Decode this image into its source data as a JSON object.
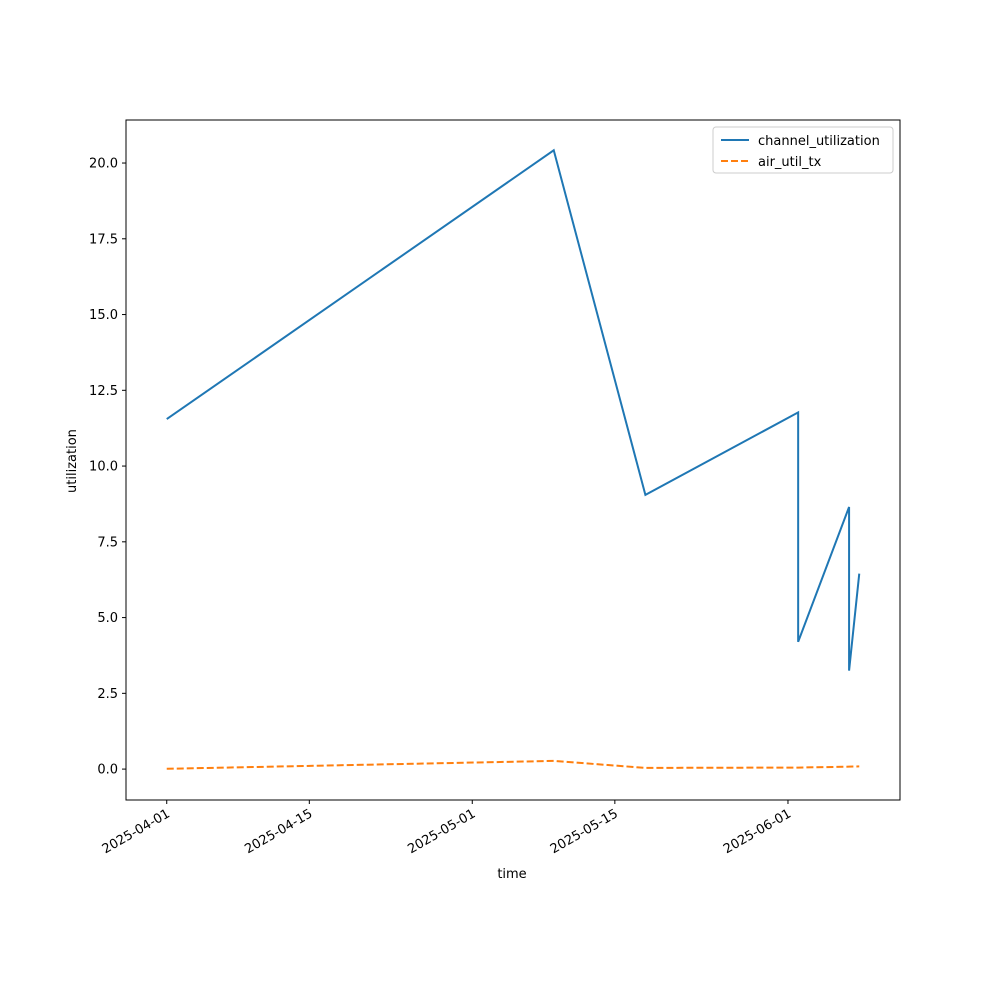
{
  "chart_data": {
    "type": "line",
    "x_label": "time",
    "y_label": "utilization",
    "x": [
      "2025-04-01",
      "2025-05-09",
      "2025-05-18",
      "2025-06-02",
      "2025-06-02",
      "2025-06-07",
      "2025-06-07",
      "2025-06-08"
    ],
    "series": [
      {
        "name": "channel_utilization",
        "color": "#1f77b4",
        "linestyle": "solid",
        "values": [
          11.55,
          20.42,
          9.05,
          11.77,
          4.2,
          8.65,
          3.25,
          6.45
        ]
      },
      {
        "name": "air_util_tx",
        "color": "#ff7f0e",
        "linestyle": "dashed",
        "values": [
          0.01,
          0.27,
          0.04,
          0.05,
          0.05,
          0.08,
          0.08,
          0.09
        ]
      }
    ],
    "xlim": [
      "2025-03-28",
      "2025-06-12"
    ],
    "xticks": [
      "2025-04-01",
      "2025-04-15",
      "2025-05-01",
      "2025-05-15",
      "2025-06-01"
    ],
    "ylim": [
      -1.02,
      21.42
    ],
    "yticks": [
      {
        "value": 0,
        "label": "0.0"
      },
      {
        "value": 2.5,
        "label": "2.5"
      },
      {
        "value": 5,
        "label": "5.0"
      },
      {
        "value": 7.5,
        "label": "7.5"
      },
      {
        "value": 10,
        "label": "10.0"
      },
      {
        "value": 12.5,
        "label": "12.5"
      },
      {
        "value": 15,
        "label": "15.0"
      },
      {
        "value": 17.5,
        "label": "17.5"
      },
      {
        "value": 20,
        "label": "20.0"
      }
    ],
    "grid": false,
    "legend": "upper right"
  }
}
